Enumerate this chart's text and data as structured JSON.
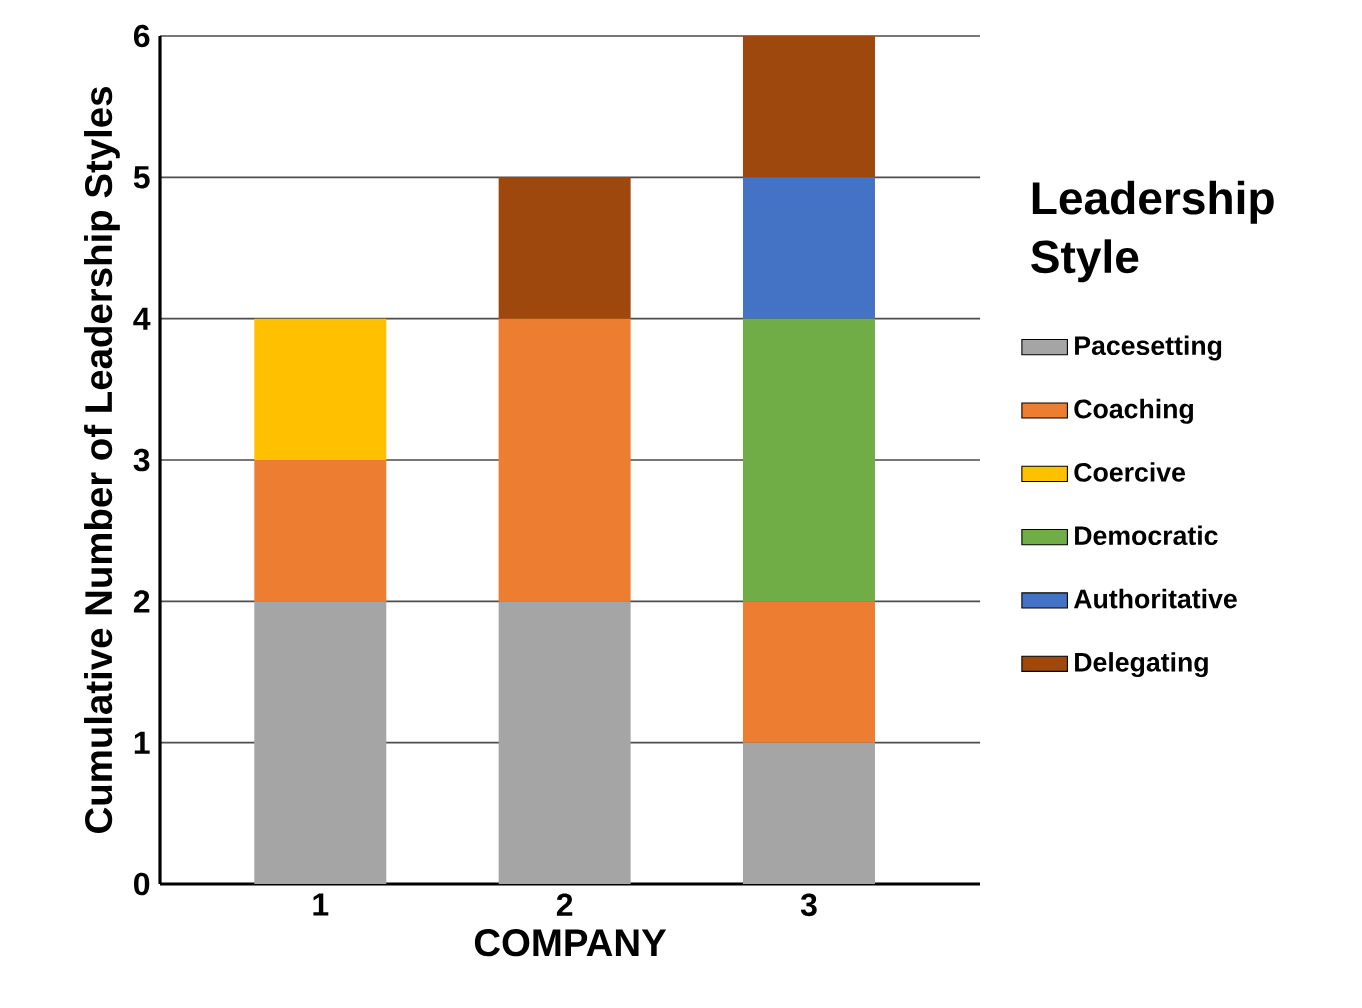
{
  "chart_data": {
    "type": "bar",
    "stacked": true,
    "categories": [
      "1",
      "2",
      "3"
    ],
    "xlabel": "COMPANY",
    "ylabel": "Cumulative Number of Leadership Styles",
    "legend_title": "Leadership Style",
    "ylim": [
      0,
      6
    ],
    "yticks": [
      0,
      1,
      2,
      3,
      4,
      5,
      6
    ],
    "grid": "y",
    "legend": "right",
    "series": [
      {
        "name": "Pacesetting",
        "color": "#a5a5a5",
        "values": [
          2,
          2,
          1
        ]
      },
      {
        "name": "Coaching",
        "color": "#ed7d31",
        "values": [
          1,
          2,
          1
        ]
      },
      {
        "name": "Coercive",
        "color": "#ffc000",
        "values": [
          1,
          0,
          0
        ]
      },
      {
        "name": "Democratic",
        "color": "#70ad47",
        "values": [
          0,
          0,
          2
        ]
      },
      {
        "name": "Authoritative",
        "color": "#4472c4",
        "values": [
          0,
          0,
          1
        ]
      },
      {
        "name": "Delegating",
        "color": "#9e480e",
        "values": [
          0,
          1,
          1
        ]
      }
    ]
  }
}
